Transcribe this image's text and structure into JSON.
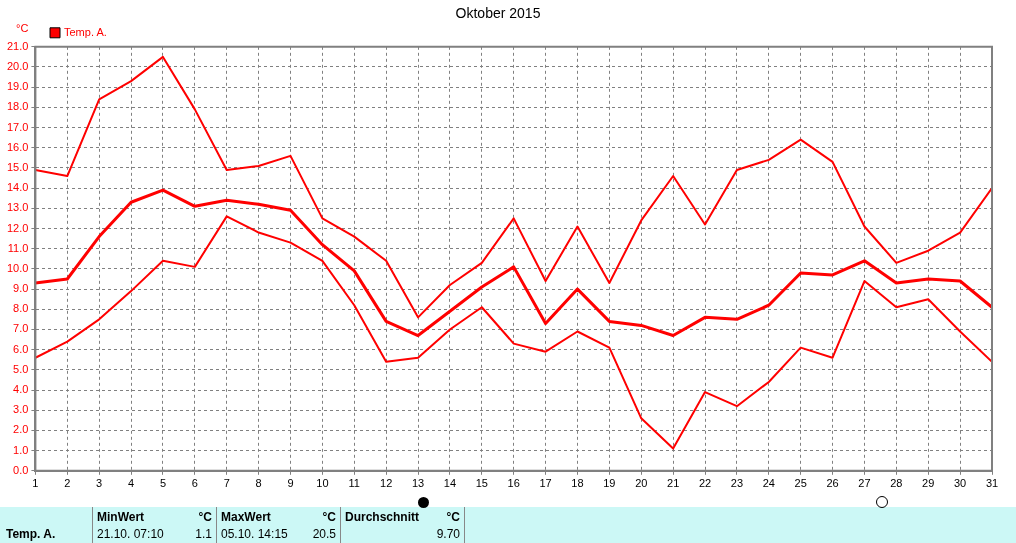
{
  "chart_data": {
    "type": "line",
    "title": "Oktober 2015",
    "ylabel": "°C",
    "legend": "top left",
    "grid": true,
    "marker": "none",
    "line_style": "solid",
    "x": [
      1,
      2,
      3,
      4,
      5,
      6,
      7,
      8,
      9,
      10,
      11,
      12,
      13,
      14,
      15,
      16,
      17,
      18,
      19,
      20,
      21,
      22,
      23,
      24,
      25,
      26,
      27,
      28,
      29,
      30,
      31
    ],
    "xlim": [
      1,
      31
    ],
    "xticks": [
      1,
      2,
      3,
      4,
      5,
      6,
      7,
      8,
      9,
      10,
      11,
      12,
      13,
      14,
      15,
      16,
      17,
      18,
      19,
      20,
      21,
      22,
      23,
      24,
      25,
      26,
      27,
      28,
      29,
      30,
      31
    ],
    "ylim": [
      0,
      21
    ],
    "yticks": [
      {
        "value": 0,
        "label": "0.0"
      },
      {
        "value": 1,
        "label": "1.0"
      },
      {
        "value": 2,
        "label": "2.0"
      },
      {
        "value": 3,
        "label": "3.0"
      },
      {
        "value": 4,
        "label": "4.0"
      },
      {
        "value": 5,
        "label": "5.0"
      },
      {
        "value": 6,
        "label": "6.0"
      },
      {
        "value": 7,
        "label": "7.0"
      },
      {
        "value": 8,
        "label": "8.0"
      },
      {
        "value": 9,
        "label": "9.0"
      },
      {
        "value": 10,
        "label": "10.0"
      },
      {
        "value": 11,
        "label": "11.0"
      },
      {
        "value": 12,
        "label": "12.0"
      },
      {
        "value": 13,
        "label": "13.0"
      },
      {
        "value": 14,
        "label": "14.0"
      },
      {
        "value": 15,
        "label": "15.0"
      },
      {
        "value": 16,
        "label": "16.0"
      },
      {
        "value": 17,
        "label": "17.0"
      },
      {
        "value": 18,
        "label": "18.0"
      },
      {
        "value": 19,
        "label": "19.0"
      },
      {
        "value": 20,
        "label": "20.0"
      },
      {
        "value": 21,
        "label": "21.0"
      }
    ],
    "series": [
      {
        "name": "Temp. A.",
        "color": "#ff0000",
        "values": [
          9.3,
          9.5,
          11.6,
          13.3,
          13.9,
          13.1,
          13.4,
          13.2,
          12.9,
          11.2,
          9.9,
          7.4,
          6.7,
          7.9,
          9.1,
          10.1,
          7.3,
          9.0,
          7.4,
          7.2,
          6.7,
          7.6,
          7.5,
          8.2,
          9.8,
          9.7,
          10.4,
          9.3,
          9.5,
          9.4,
          8.1
        ]
      },
      {
        "color": "#ff0000",
        "values": [
          14.9,
          14.6,
          18.4,
          19.3,
          20.5,
          17.9,
          14.9,
          15.1,
          15.6,
          12.5,
          11.6,
          10.4,
          7.6,
          9.2,
          10.3,
          12.5,
          9.4,
          12.1,
          9.3,
          12.4,
          14.6,
          12.2,
          14.9,
          15.4,
          16.4,
          15.3,
          12.1,
          10.3,
          10.9,
          11.8,
          14.0
        ]
      },
      {
        "color": "#ff0000",
        "values": [
          5.6,
          6.4,
          7.5,
          8.9,
          10.4,
          10.1,
          12.6,
          11.8,
          11.3,
          10.4,
          8.2,
          5.4,
          5.6,
          7.0,
          8.1,
          6.3,
          5.9,
          6.9,
          6.1,
          2.6,
          1.1,
          3.9,
          3.2,
          4.4,
          6.1,
          5.6,
          9.4,
          8.1,
          8.5,
          6.9,
          5.4
        ]
      }
    ],
    "annotations": [
      "MinWert",
      "°C",
      "21.10.  07:10",
      "1.1",
      "MaxWert",
      "°C",
      "05.10.  14:15",
      "20.5",
      "Durchschnitt",
      "°C",
      "9.70"
    ]
  }
}
